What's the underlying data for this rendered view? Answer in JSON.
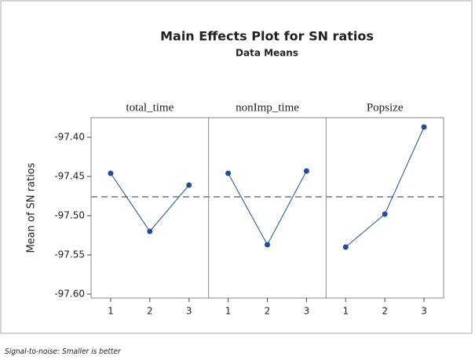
{
  "chart_data": {
    "type": "line",
    "title": "Main Effects Plot for SN ratios",
    "subtitle": "Data Means",
    "y_label": "Mean of SN ratios",
    "footnote": "Signal-to-noise: Smaller is better",
    "color": "#1f4e9a",
    "reference_line": -97.476,
    "ylim": [
      -97.605,
      -97.375
    ],
    "yticks": [
      {
        "value": -97.4,
        "label": "-97.40"
      },
      {
        "value": -97.45,
        "label": "-97.45"
      },
      {
        "value": -97.5,
        "label": "-97.50"
      },
      {
        "value": -97.55,
        "label": "-97.55"
      },
      {
        "value": -97.6,
        "label": "-97.60"
      }
    ],
    "panels": [
      {
        "name": "total_time",
        "categories": [
          "1",
          "2",
          "3"
        ],
        "values": [
          -97.446,
          -97.52,
          -97.461
        ]
      },
      {
        "name": "nonImp_time",
        "categories": [
          "1",
          "2",
          "3"
        ],
        "values": [
          -97.446,
          -97.537,
          -97.443
        ]
      },
      {
        "name": "Popsize",
        "categories": [
          "1",
          "2",
          "3"
        ],
        "values": [
          -97.54,
          -97.498,
          -97.387
        ]
      }
    ]
  }
}
